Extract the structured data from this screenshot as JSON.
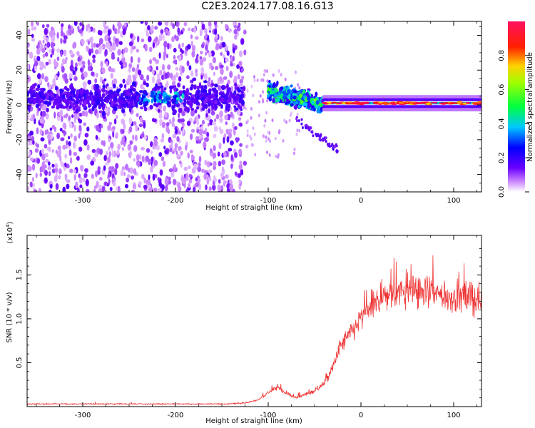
{
  "title": "C2E3.2024.177.08.16.G13",
  "chart_data": [
    {
      "type": "heatmap",
      "xlabel": "Height of straight line (km)",
      "ylabel": "Frequency (Hz)",
      "xlim": [
        -360,
        130
      ],
      "ylim": [
        -50,
        48
      ],
      "xticks": [
        -300,
        -200,
        -100,
        0,
        100
      ],
      "yticks": [
        -40,
        -20,
        0,
        20,
        40
      ],
      "colorbar": {
        "label": "Normalized spectral amplitude",
        "range": [
          0.0,
          1.0
        ],
        "ticks": [
          "0.0",
          "0.2",
          "0.4",
          "0.6",
          "0.8"
        ],
        "colormap": "white-violet-blue-cyan-green-yellow-red-pink"
      },
      "features": {
        "noise_region_x": [
          -360,
          -125
        ],
        "main_band_frequency_hz": 4,
        "descending_track": {
          "x": [
            -100,
            -40
          ],
          "frequency_hz": [
            8,
            0
          ]
        },
        "narrow_band_x": [
          -40,
          130
        ],
        "narrow_band_frequency_hz": 1
      }
    },
    {
      "type": "line",
      "xlabel": "Height of straight line (km)",
      "ylabel": "SNR (10 * v/v)",
      "y_multiplier": "(x10",
      "y_multiplier_exp": "4",
      "y_multiplier_close": ")",
      "xlim": [
        -360,
        130
      ],
      "ylim": [
        0,
        1.95
      ],
      "xticks": [
        -300,
        -200,
        -100,
        0,
        100
      ],
      "yticks": [
        "0.5",
        "1.0",
        "1.5"
      ],
      "color": "#ee3333",
      "series": [
        {
          "x": [
            -360,
            -300,
            -250,
            -200,
            -150,
            -125,
            -110,
            -100,
            -90,
            -80,
            -70,
            -60,
            -50,
            -40,
            -35,
            -30,
            -25,
            -20,
            -15,
            -10,
            -5,
            0,
            10,
            20,
            30,
            40,
            50,
            60,
            70,
            80,
            90,
            100,
            110,
            120,
            130
          ],
          "values": [
            0.03,
            0.03,
            0.03,
            0.03,
            0.03,
            0.04,
            0.08,
            0.16,
            0.22,
            0.15,
            0.1,
            0.14,
            0.18,
            0.26,
            0.35,
            0.45,
            0.62,
            0.72,
            0.78,
            0.85,
            0.92,
            1.0,
            1.12,
            1.22,
            1.28,
            1.3,
            1.32,
            1.33,
            1.3,
            1.28,
            1.26,
            1.25,
            1.24,
            1.22,
            1.22
          ]
        }
      ]
    }
  ]
}
